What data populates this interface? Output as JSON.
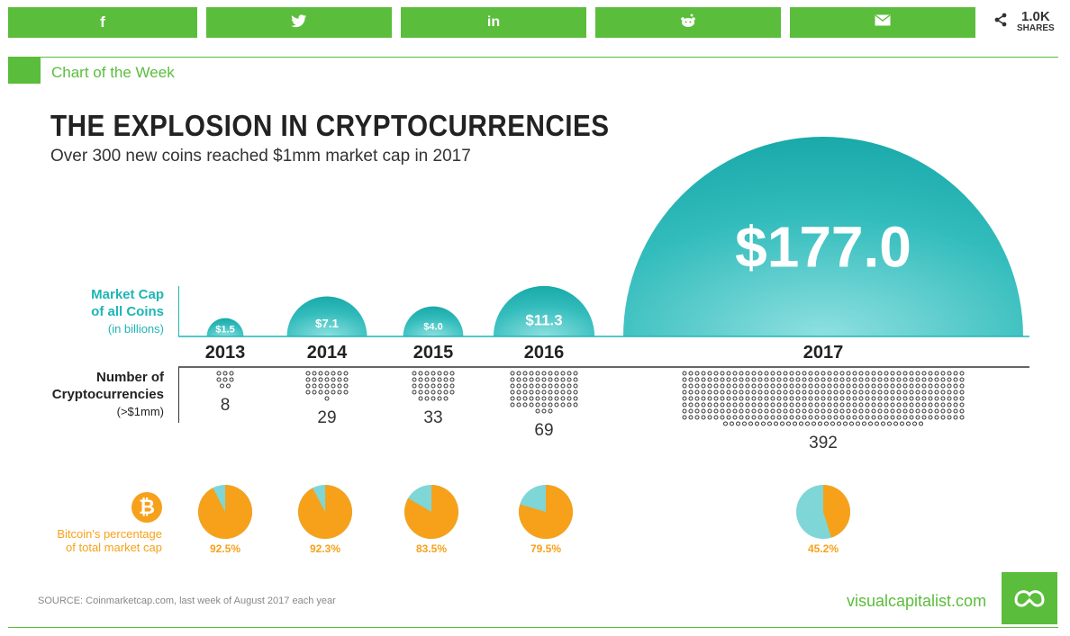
{
  "share_bar": {
    "buttons": [
      {
        "name": "facebook",
        "icon": "facebook-icon",
        "glyph": "f"
      },
      {
        "name": "twitter",
        "icon": "twitter-icon",
        "glyph": "🐦"
      },
      {
        "name": "linkedin",
        "icon": "linkedin-icon",
        "glyph": "in"
      },
      {
        "name": "reddit",
        "icon": "reddit-icon",
        "glyph": "◉"
      },
      {
        "name": "email",
        "icon": "email-icon",
        "glyph": "✉"
      }
    ],
    "share_count": "1.0K",
    "share_label": "SHARES",
    "accent": "#5bbd3c"
  },
  "header": {
    "section_label": "Chart of the Week",
    "title": "THE EXPLOSION IN CRYPTOCURRENCIES",
    "subtitle": "Over 300 new coins reached $1mm market cap in 2017"
  },
  "labels": {
    "market_cap_line1": "Market Cap",
    "market_cap_line2": "of all Coins",
    "market_cap_unit": "(in billions)",
    "num_crypto_line1": "Number of",
    "num_crypto_line2": "Cryptocurrencies",
    "num_crypto_unit": "(>$1mm)",
    "btc_line1": "Bitcoin's percentage",
    "btc_line2": "of total market cap",
    "btc_symbol": "₿"
  },
  "chart_data": {
    "type": "infographic",
    "years": [
      "2013",
      "2014",
      "2015",
      "2016",
      "2017"
    ],
    "market_cap_billions": [
      1.5,
      7.1,
      4.0,
      11.3,
      177.0
    ],
    "market_cap_labels": [
      "$1.5",
      "$7.1",
      "$4.0",
      "$11.3",
      "$177.0"
    ],
    "num_cryptocurrencies": [
      8,
      29,
      33,
      69,
      392
    ],
    "bitcoin_share_pct": [
      92.5,
      92.3,
      83.5,
      79.5,
      45.2
    ],
    "bitcoin_share_labels": [
      "92.5%",
      "92.3%",
      "83.5%",
      "79.5%",
      "45.2%"
    ],
    "colors": {
      "market_cap": "#1fb5b5",
      "bitcoin": "#f7a11a",
      "bitcoin_rest": "#7fd6d6",
      "dots": "#333333"
    }
  },
  "footer": {
    "source": "SOURCE: Coinmarketcap.com, last week of August 2017 each year",
    "brand": "visualcapitalist.com"
  }
}
